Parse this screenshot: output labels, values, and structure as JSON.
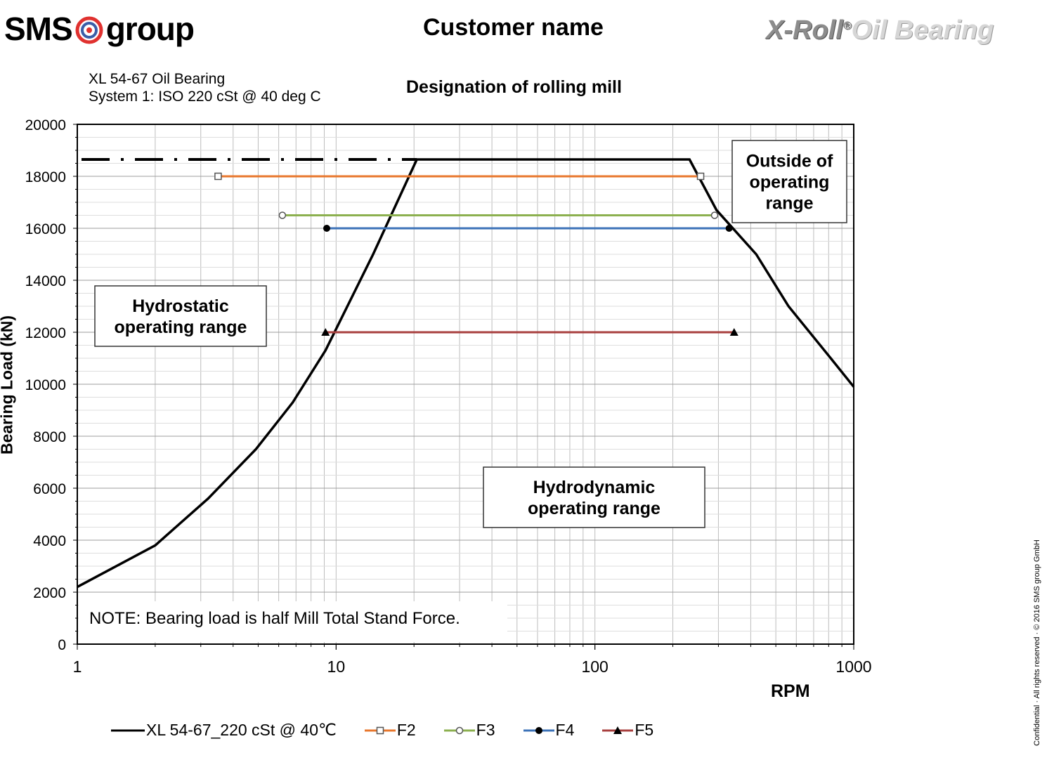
{
  "header": {
    "logo_left": "SMS group",
    "logo_left_part1": "SMS",
    "logo_left_part2": "group",
    "customer_name": "Customer name",
    "logo_right_part1": "X-Roll",
    "logo_right_reg": "®",
    "logo_right_part2": "Oil Bearing"
  },
  "bearing": {
    "line1": "XL 54-67 Oil Bearing",
    "line2": "System  1:  ISO  220 cSt @ 40 deg C"
  },
  "mill_title": "Designation of rolling mill",
  "footer": {
    "copyright": "Confidential · All rights reserved · © 2016 SMS group GmbH"
  },
  "colors": {
    "curve": "#000000",
    "F2": "#e8772d",
    "F3": "#8cb04f",
    "F4": "#3d73b8",
    "F5": "#a8403f",
    "grid": "#bdbdbd"
  },
  "chart_data": {
    "type": "line",
    "xlabel": "RPM",
    "ylabel": "Bearing Load (kN)",
    "x_scale": "log",
    "xlim": [
      1,
      1000
    ],
    "ylim": [
      0,
      20000
    ],
    "x_ticks": [
      1,
      10,
      100,
      1000
    ],
    "x_tick_labels": [
      "1",
      "10",
      "100",
      "1000"
    ],
    "y_ticks": [
      0,
      2000,
      4000,
      6000,
      8000,
      10000,
      12000,
      14000,
      16000,
      18000,
      20000
    ],
    "y_tick_labels": [
      "0",
      "2000",
      "4000",
      "6000",
      "8000",
      "10000",
      "12000",
      "14000",
      "16000",
      "18000",
      "20000"
    ],
    "grid": true,
    "legend_position": "bottom",
    "limit_line": {
      "y": 18650,
      "x_range": [
        1,
        20.5
      ],
      "style": "dash-dot"
    },
    "series": [
      {
        "name": "XL 54-67_220 cSt @ 40℃",
        "color": "#000000",
        "marker": "none",
        "x": [
          1,
          2,
          3.2,
          4.9,
          6.8,
          9.1,
          13.9,
          20.5,
          232,
          295,
          420,
          560,
          800,
          1000
        ],
        "y": [
          2200,
          3800,
          5600,
          7500,
          9300,
          11300,
          15000,
          18650,
          18650,
          16700,
          15000,
          13000,
          11100,
          9900
        ]
      },
      {
        "name": "F2",
        "color": "#e8772d",
        "marker": "open-square",
        "x": [
          3.5,
          256
        ],
        "y": [
          18000,
          18000
        ]
      },
      {
        "name": "F3",
        "color": "#8cb04f",
        "marker": "open-circle",
        "x": [
          6.2,
          290
        ],
        "y": [
          16500,
          16500
        ]
      },
      {
        "name": "F4",
        "color": "#3d73b8",
        "marker": "filled-circle",
        "x": [
          9.2,
          330
        ],
        "y": [
          16000,
          16000
        ]
      },
      {
        "name": "F5",
        "color": "#a8403f",
        "marker": "filled-triangle",
        "x": [
          9.1,
          345
        ],
        "y": [
          12000,
          12000
        ]
      }
    ],
    "annotations": {
      "outside": "Outside of\noperating\nrange",
      "outside_lines": [
        "Outside of",
        "operating",
        "range"
      ],
      "hydrostatic_lines": [
        "Hydrostatic",
        "operating range"
      ],
      "hydrodynamic_lines": [
        "Hydrodynamic",
        "operating range"
      ],
      "note": "NOTE: Bearing load is half Mill Total Stand Force."
    }
  }
}
